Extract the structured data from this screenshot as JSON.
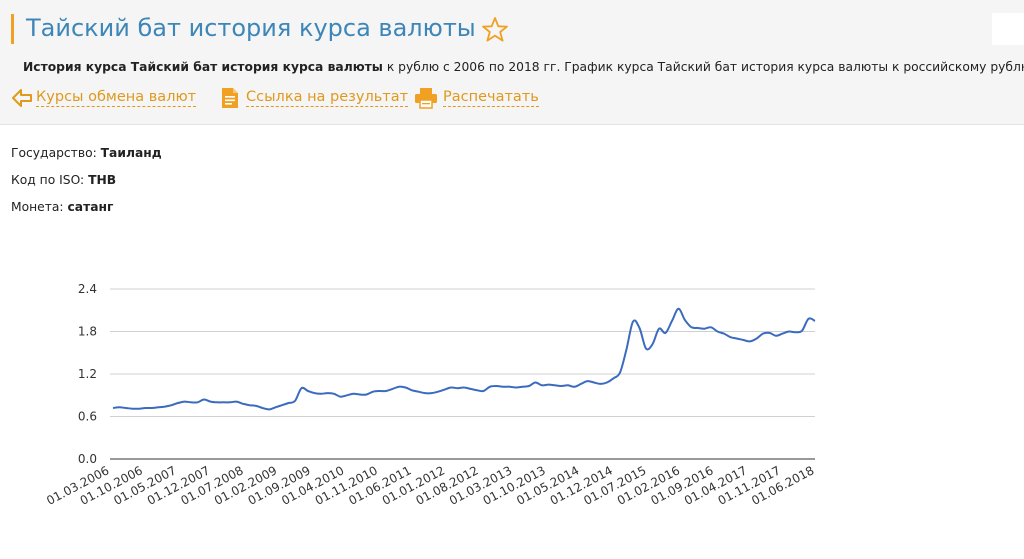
{
  "header": {
    "title": "Тайский бат история курса валюты",
    "description_bold": "История курса Тайский бат история курса валюты",
    "description_rest": " к рублю с 2006 по 2018 гг. График курса Тайский бат история курса валюты к российскому рублю."
  },
  "actions": {
    "exchange_label": "Курсы обмена валют",
    "link_label": "Ссылка на результат",
    "print_label": "Распечатать"
  },
  "info": {
    "state_label": "Государство:",
    "state_value": "Таиланд",
    "iso_label": "Код по ISO:",
    "iso_value": "THB",
    "coin_label": "Монета:",
    "coin_value": "сатанг"
  },
  "colors": {
    "accent": "#f0a022",
    "title": "#3d86b8",
    "link": "#e0991d",
    "line": "#3a6bbf"
  },
  "icons": [
    "star-outline-icon",
    "arrow-left-icon",
    "document-icon",
    "printer-icon"
  ],
  "chart_data": {
    "type": "line",
    "title": "",
    "xlabel": "",
    "ylabel": "",
    "ylim": [
      0,
      2.4
    ],
    "yticks": [
      "0.0",
      "0.6",
      "1.2",
      "1.8",
      "2.4"
    ],
    "xticks": [
      "01.03.2006",
      "01.10.2006",
      "01.05.2007",
      "01.12.2007",
      "01.07.2008",
      "01.02.2009",
      "01.09.2009",
      "01.04.2010",
      "01.11.2010",
      "01.06.2011",
      "01.01.2012",
      "01.08.2012",
      "01.03.2013",
      "01.10.2013",
      "01.05.2014",
      "01.12.2014",
      "01.07.2015",
      "01.02.2016",
      "01.09.2016",
      "01.04.2017",
      "01.11.2017",
      "01.06.2018"
    ],
    "grid": true,
    "legend": "none",
    "series": [
      {
        "values": [
          0.72,
          0.73,
          0.72,
          0.71,
          0.71,
          0.72,
          0.72,
          0.73,
          0.74,
          0.76,
          0.79,
          0.81,
          0.8,
          0.8,
          0.84,
          0.81,
          0.8,
          0.8,
          0.8,
          0.81,
          0.78,
          0.76,
          0.75,
          0.72,
          0.7,
          0.73,
          0.76,
          0.79,
          0.82,
          1.0,
          0.96,
          0.93,
          0.92,
          0.93,
          0.92,
          0.88,
          0.9,
          0.92,
          0.91,
          0.91,
          0.95,
          0.96,
          0.96,
          0.99,
          1.02,
          1.01,
          0.97,
          0.95,
          0.93,
          0.93,
          0.95,
          0.98,
          1.01,
          1.0,
          1.01,
          0.99,
          0.97,
          0.96,
          1.02,
          1.03,
          1.02,
          1.02,
          1.01,
          1.02,
          1.03,
          1.08,
          1.04,
          1.05,
          1.04,
          1.03,
          1.04,
          1.02,
          1.06,
          1.1,
          1.08,
          1.06,
          1.08,
          1.14,
          1.22,
          1.55,
          1.94,
          1.85,
          1.56,
          1.62,
          1.84,
          1.78,
          1.95,
          2.12,
          1.96,
          1.86,
          1.85,
          1.84,
          1.86,
          1.8,
          1.77,
          1.72,
          1.7,
          1.68,
          1.66,
          1.7,
          1.77,
          1.78,
          1.74,
          1.77,
          1.8,
          1.79,
          1.81,
          1.98,
          1.95
        ]
      }
    ]
  }
}
